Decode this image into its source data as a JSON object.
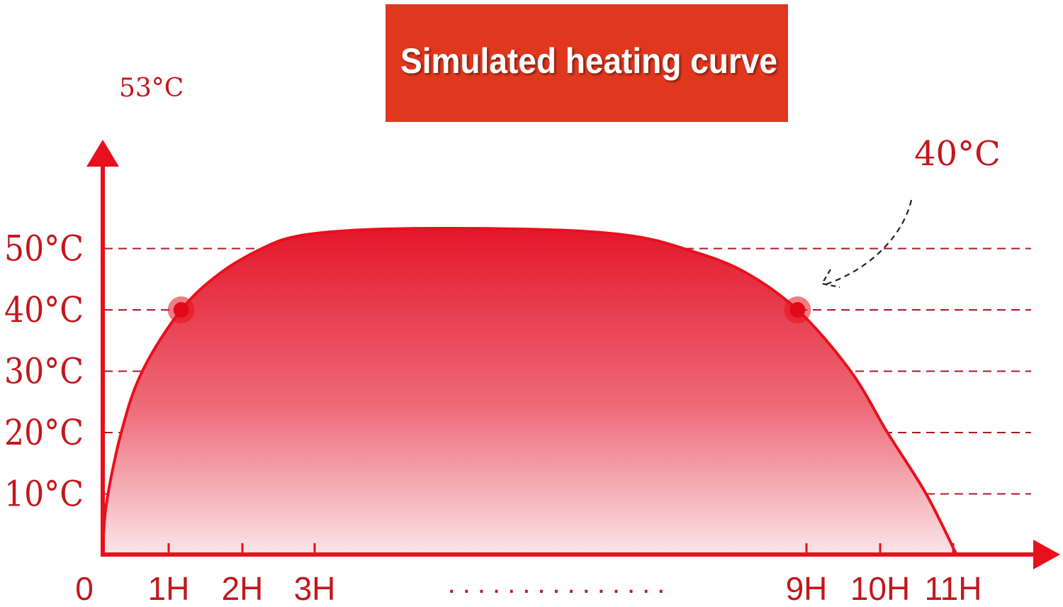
{
  "chart_data": {
    "type": "area",
    "title": "Simulated heating curve",
    "xlabel": "",
    "ylabel": "",
    "x_tick_labels": [
      "0",
      "1H",
      "2H",
      "3H",
      "9H",
      "10H",
      "11H"
    ],
    "x_tick_values": [
      0,
      1,
      2,
      3,
      9,
      10,
      11
    ],
    "x_axis_break": {
      "from": 3,
      "to": 9,
      "label": "..............."
    },
    "y_tick_labels": [
      "10°C",
      "20°C",
      "30°C",
      "40°C",
      "50°C"
    ],
    "y_tick_values": [
      10,
      20,
      30,
      40,
      50
    ],
    "ylim": [
      0,
      53
    ],
    "xlim": [
      0,
      11.5
    ],
    "grid": "horizontal dashed",
    "series": [
      {
        "x": [
          0,
          0.05,
          0.28,
          0.6,
          1.17,
          1.7,
          2.27,
          2.75,
          3.5,
          4.5,
          6.0,
          6.9,
          7.5,
          8.2,
          8.89,
          9.6,
          10.1,
          10.63,
          11.05
        ],
        "y": [
          0,
          8,
          20,
          30,
          40,
          46,
          50,
          52,
          53,
          53.3,
          53,
          52,
          50,
          46.5,
          40,
          30,
          20,
          10,
          0
        ]
      }
    ],
    "markers": [
      {
        "x": 1.17,
        "y": 40
      },
      {
        "x": 8.89,
        "y": 40
      }
    ],
    "annotations": {
      "peak_label": "53°C",
      "callout_label": "40°C"
    },
    "colors": {
      "title_bg": "#e0381f",
      "axis": "#e8101c",
      "curve": "#e8101c",
      "grid": "#b01820",
      "label": "#c4161c",
      "fill_top": "#e3172a",
      "fill_bottom": "#fbe6e8",
      "callout_arrow": "#222222"
    }
  }
}
